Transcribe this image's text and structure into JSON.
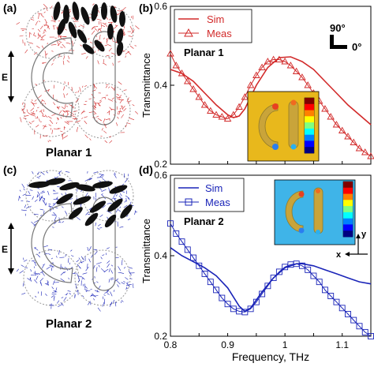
{
  "panels": {
    "a": {
      "letter": "(a)",
      "name": "Planar 1",
      "e_label": "E"
    },
    "c": {
      "letter": "(c)",
      "name": "Planar 2",
      "e_label": "E"
    }
  },
  "colors": {
    "red": "#d22a2a",
    "blue": "#1a24b8",
    "black": "#111111"
  },
  "chart_data": [
    {
      "panel": "(b)",
      "type": "line",
      "annotation": "Planar 1",
      "ylabel": "Transmittance",
      "xlabel": "",
      "xlim": [
        0.8,
        1.15
      ],
      "ylim": [
        0.2,
        0.6
      ],
      "yticks": [
        "0.2",
        "0.4",
        "0.6"
      ],
      "xticks": [],
      "legend": [
        "Sim",
        "Meas"
      ],
      "legend_position": "top-left",
      "orientation_labels": [
        "90°",
        "0°"
      ],
      "grid": false,
      "series": [
        {
          "name": "Sim",
          "marker": "none",
          "x": [
            0.8,
            0.82,
            0.84,
            0.86,
            0.88,
            0.9,
            0.91,
            0.92,
            0.93,
            0.95,
            0.97,
            0.99,
            1.01,
            1.03,
            1.05,
            1.07,
            1.09,
            1.11,
            1.13,
            1.15
          ],
          "y": [
            0.44,
            0.43,
            0.41,
            0.38,
            0.35,
            0.325,
            0.318,
            0.322,
            0.34,
            0.4,
            0.445,
            0.47,
            0.472,
            0.46,
            0.44,
            0.41,
            0.38,
            0.35,
            0.325,
            0.3
          ]
        },
        {
          "name": "Meas",
          "marker": "triangle",
          "x": [
            0.8,
            0.81,
            0.82,
            0.83,
            0.84,
            0.85,
            0.86,
            0.87,
            0.88,
            0.89,
            0.9,
            0.91,
            0.92,
            0.93,
            0.94,
            0.95,
            0.96,
            0.97,
            0.98,
            0.99,
            1.0,
            1.01,
            1.02,
            1.03,
            1.04,
            1.05,
            1.06,
            1.07,
            1.08,
            1.09,
            1.1,
            1.11,
            1.12,
            1.13,
            1.14,
            1.15
          ],
          "y": [
            0.48,
            0.45,
            0.43,
            0.41,
            0.39,
            0.37,
            0.35,
            0.335,
            0.325,
            0.32,
            0.315,
            0.325,
            0.345,
            0.37,
            0.4,
            0.425,
            0.445,
            0.46,
            0.465,
            0.465,
            0.46,
            0.45,
            0.435,
            0.42,
            0.4,
            0.38,
            0.36,
            0.34,
            0.32,
            0.3,
            0.285,
            0.27,
            0.255,
            0.24,
            0.23,
            0.22
          ]
        }
      ]
    },
    {
      "panel": "(d)",
      "type": "line",
      "annotation": "Planar 2",
      "ylabel": "Transmittance",
      "xlabel": "Frequency, THz",
      "xlim": [
        0.8,
        1.15
      ],
      "ylim": [
        0.2,
        0.6
      ],
      "yticks": [
        "0.2",
        "0.4",
        "0.6"
      ],
      "xticks": [
        "0.8",
        "0.9",
        "1",
        "1.1"
      ],
      "legend": [
        "Sim",
        "Meas"
      ],
      "legend_position": "top-left",
      "axis_labels": [
        "y",
        "x"
      ],
      "grid": false,
      "series": [
        {
          "name": "Sim",
          "marker": "none",
          "x": [
            0.8,
            0.82,
            0.84,
            0.86,
            0.88,
            0.9,
            0.92,
            0.93,
            0.94,
            0.96,
            0.98,
            1.0,
            1.02,
            1.03,
            1.05,
            1.07,
            1.09,
            1.11,
            1.13,
            1.15
          ],
          "y": [
            0.42,
            0.4,
            0.385,
            0.37,
            0.35,
            0.32,
            0.275,
            0.262,
            0.27,
            0.31,
            0.345,
            0.37,
            0.38,
            0.38,
            0.375,
            0.365,
            0.355,
            0.345,
            0.335,
            0.33
          ]
        },
        {
          "name": "Meas",
          "marker": "square",
          "x": [
            0.8,
            0.81,
            0.82,
            0.83,
            0.84,
            0.85,
            0.86,
            0.87,
            0.88,
            0.89,
            0.9,
            0.91,
            0.92,
            0.93,
            0.94,
            0.95,
            0.96,
            0.97,
            0.98,
            0.99,
            1.0,
            1.01,
            1.02,
            1.03,
            1.04,
            1.05,
            1.06,
            1.07,
            1.08,
            1.09,
            1.1,
            1.11,
            1.12,
            1.13,
            1.14,
            1.15
          ],
          "y": [
            0.48,
            0.455,
            0.435,
            0.415,
            0.395,
            0.375,
            0.355,
            0.335,
            0.315,
            0.295,
            0.28,
            0.268,
            0.262,
            0.26,
            0.268,
            0.285,
            0.305,
            0.325,
            0.345,
            0.36,
            0.372,
            0.378,
            0.38,
            0.375,
            0.365,
            0.35,
            0.335,
            0.315,
            0.3,
            0.285,
            0.27,
            0.255,
            0.24,
            0.225,
            0.21,
            0.2
          ]
        }
      ]
    }
  ]
}
